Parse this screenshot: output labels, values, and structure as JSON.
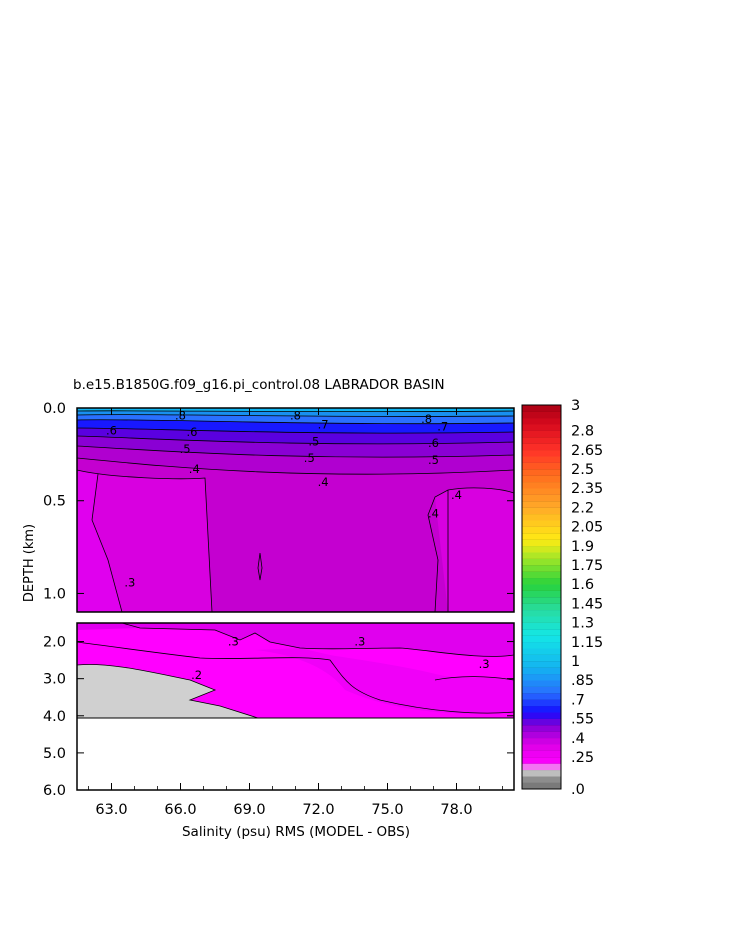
{
  "chart_data": {
    "type": "heatmap",
    "title": "b.e15.B1850G.f09_g16.pi_control.08 LABRADOR BASIN",
    "xlabel": "Salinity (psu) RMS (MODEL - OBS)",
    "ylabel": "DEPTH (km)",
    "x_range": [
      61.5,
      80.5
    ],
    "x_ticks": [
      "63.0",
      "66.0",
      "69.0",
      "72.0",
      "75.0",
      "78.0"
    ],
    "upper_panel": {
      "depth_range_km": [
        0.0,
        1.1
      ],
      "y_ticks": [
        "0.0",
        "0.5",
        "1.0"
      ]
    },
    "lower_panel": {
      "depth_range_km": [
        1.5,
        6.0
      ],
      "y_ticks": [
        "2.0",
        "3.0",
        "4.0",
        "5.0",
        "6.0"
      ]
    },
    "bottom_depth_km": 3.9,
    "contour_labels": [
      {
        "text": ".8",
        "panel": "upper",
        "x": 66.0,
        "depth": 0.04
      },
      {
        "text": ".8",
        "panel": "upper",
        "x": 71.0,
        "depth": 0.04
      },
      {
        "text": ".7",
        "panel": "upper",
        "x": 72.2,
        "depth": 0.09
      },
      {
        "text": ".8",
        "panel": "upper",
        "x": 76.7,
        "depth": 0.06
      },
      {
        "text": ".7",
        "panel": "upper",
        "x": 77.4,
        "depth": 0.1
      },
      {
        "text": ".6",
        "panel": "upper",
        "x": 63.0,
        "depth": 0.12
      },
      {
        "text": ".6",
        "panel": "upper",
        "x": 66.5,
        "depth": 0.13
      },
      {
        "text": ".5",
        "panel": "upper",
        "x": 71.8,
        "depth": 0.18
      },
      {
        "text": ".6",
        "panel": "upper",
        "x": 77.0,
        "depth": 0.19
      },
      {
        "text": ".5",
        "panel": "upper",
        "x": 66.2,
        "depth": 0.22
      },
      {
        "text": ".5",
        "panel": "upper",
        "x": 71.6,
        "depth": 0.27
      },
      {
        "text": ".5",
        "panel": "upper",
        "x": 77.0,
        "depth": 0.28
      },
      {
        "text": ".4",
        "panel": "upper",
        "x": 66.6,
        "depth": 0.33
      },
      {
        "text": ".4",
        "panel": "upper",
        "x": 72.2,
        "depth": 0.4
      },
      {
        "text": ".4",
        "panel": "upper",
        "x": 78.0,
        "depth": 0.47
      },
      {
        "text": ".4",
        "panel": "upper",
        "x": 77.0,
        "depth": 0.57
      },
      {
        "text": ".3",
        "panel": "upper",
        "x": 63.8,
        "depth": 0.94
      },
      {
        "text": ".3",
        "panel": "lower",
        "x": 68.3,
        "depth": 2.0
      },
      {
        "text": ".3",
        "panel": "lower",
        "x": 73.8,
        "depth": 2.0
      },
      {
        "text": ".3",
        "panel": "lower",
        "x": 79.2,
        "depth": 2.6
      },
      {
        "text": ".2",
        "panel": "lower",
        "x": 66.7,
        "depth": 2.9
      }
    ],
    "colorbar": {
      "min": 0.0,
      "max": 3.0,
      "step": 0.05,
      "labels": [
        "3",
        "2.8",
        "2.65",
        "2.5",
        "2.35",
        "2.2",
        "2.05",
        "1.9",
        "1.75",
        "1.6",
        "1.45",
        "1.3",
        "1.15",
        "1",
        ".85",
        ".7",
        ".55",
        ".4",
        ".25",
        ".0"
      ],
      "label_values": [
        3.0,
        2.8,
        2.65,
        2.5,
        2.35,
        2.2,
        2.05,
        1.9,
        1.75,
        1.6,
        1.45,
        1.3,
        1.15,
        1.0,
        0.85,
        0.7,
        0.55,
        0.4,
        0.25,
        0.0
      ]
    },
    "colors": {
      "magenta_bright": "#ff00ff",
      "magenta": "#e600e6",
      "purple": "#c000cc",
      "violet": "#9000d0",
      "indigo": "#5a00e0",
      "blue_deep": "#1010ff",
      "blue": "#2060ff",
      "blue_light": "#1890f0",
      "cyan_blue": "#10b0f0",
      "land": "#d0d0d0"
    }
  }
}
